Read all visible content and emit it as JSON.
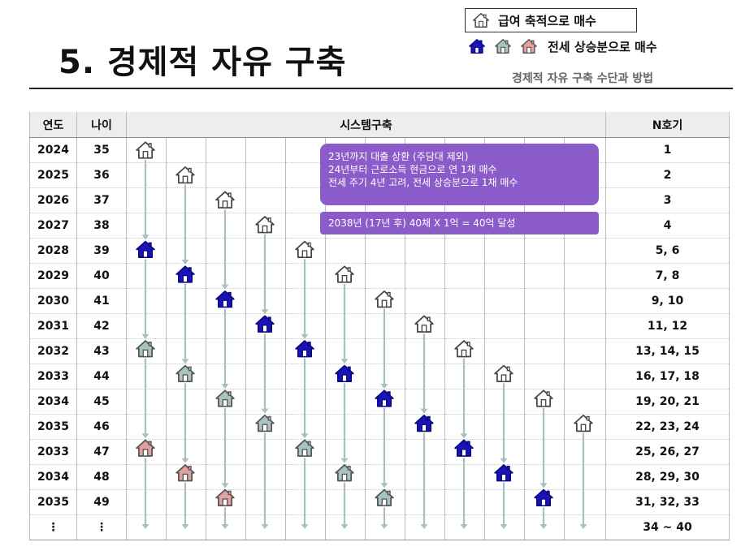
{
  "title": "5. 경제적 자유 구축",
  "subtitle": "경제적 자유 구축 수단과 방법",
  "legend": {
    "salary_label": "급여 축적으로 매수",
    "jeonse_label": "전세 상승분으로 매수"
  },
  "colors": {
    "salary": "#ffffff",
    "loan_paid": "#1a14b8",
    "jeonse_gray": "#a9c3c1",
    "jeonse_pink": "#e2a0a0",
    "arrow": "#a9c0bf",
    "note_bg": "#8b5cc9"
  },
  "table": {
    "headers": [
      "연도",
      "나이",
      "시스템구축",
      "N호기"
    ],
    "rows": [
      {
        "year": "2024",
        "age": "35",
        "n": "1"
      },
      {
        "year": "2025",
        "age": "36",
        "n": "2"
      },
      {
        "year": "2026",
        "age": "37",
        "n": "3"
      },
      {
        "year": "2027",
        "age": "38",
        "n": "4"
      },
      {
        "year": "2028",
        "age": "39",
        "n": "5, 6"
      },
      {
        "year": "2029",
        "age": "40",
        "n": "7, 8"
      },
      {
        "year": "2030",
        "age": "41",
        "n": "9, 10"
      },
      {
        "year": "2031",
        "age": "42",
        "n": "11, 12"
      },
      {
        "year": "2032",
        "age": "43",
        "n": "13, 14, 15"
      },
      {
        "year": "2033",
        "age": "44",
        "n": "16, 17, 18"
      },
      {
        "year": "2034",
        "age": "45",
        "n": "19, 20, 21"
      },
      {
        "year": "2035",
        "age": "46",
        "n": "22, 23, 24"
      },
      {
        "year": "2033",
        "age": "47",
        "n": "25, 26, 27"
      },
      {
        "year": "2034",
        "age": "48",
        "n": "28, 29, 30"
      },
      {
        "year": "2035",
        "age": "49",
        "n": "31, 32, 33"
      },
      {
        "year": "⋮",
        "age": "⋮",
        "n": "34 ~ 40"
      }
    ]
  },
  "notes": {
    "note1": [
      "23년까지 대출 상환 (주담대 제외)",
      "24년부터 근로소득 현금으로 연 1채 매수",
      "전세 주기 4년 고려, 전세 상승분으로 1채 매수"
    ],
    "note2": "2038년 (17년  후) 40채 X 1억 = 40억 달성"
  },
  "houses": [
    {
      "c": 0,
      "r": 0,
      "t": "salary"
    },
    {
      "c": 1,
      "r": 1,
      "t": "salary"
    },
    {
      "c": 2,
      "r": 2,
      "t": "salary"
    },
    {
      "c": 3,
      "r": 3,
      "t": "salary"
    },
    {
      "c": 0,
      "r": 4,
      "t": "loan_paid"
    },
    {
      "c": 4,
      "r": 4,
      "t": "salary"
    },
    {
      "c": 1,
      "r": 5,
      "t": "loan_paid"
    },
    {
      "c": 5,
      "r": 5,
      "t": "salary"
    },
    {
      "c": 2,
      "r": 6,
      "t": "loan_paid"
    },
    {
      "c": 6,
      "r": 6,
      "t": "salary"
    },
    {
      "c": 3,
      "r": 7,
      "t": "loan_paid"
    },
    {
      "c": 7,
      "r": 7,
      "t": "salary"
    },
    {
      "c": 0,
      "r": 8,
      "t": "jeonse_gray"
    },
    {
      "c": 4,
      "r": 8,
      "t": "loan_paid"
    },
    {
      "c": 8,
      "r": 8,
      "t": "salary"
    },
    {
      "c": 1,
      "r": 9,
      "t": "jeonse_gray"
    },
    {
      "c": 5,
      "r": 9,
      "t": "loan_paid"
    },
    {
      "c": 9,
      "r": 9,
      "t": "salary"
    },
    {
      "c": 2,
      "r": 10,
      "t": "jeonse_gray"
    },
    {
      "c": 6,
      "r": 10,
      "t": "loan_paid"
    },
    {
      "c": 10,
      "r": 10,
      "t": "salary"
    },
    {
      "c": 3,
      "r": 11,
      "t": "jeonse_gray"
    },
    {
      "c": 7,
      "r": 11,
      "t": "loan_paid"
    },
    {
      "c": 11,
      "r": 11,
      "t": "salary"
    },
    {
      "c": 0,
      "r": 12,
      "t": "jeonse_pink"
    },
    {
      "c": 4,
      "r": 12,
      "t": "jeonse_gray"
    },
    {
      "c": 8,
      "r": 12,
      "t": "loan_paid"
    },
    {
      "c": 1,
      "r": 13,
      "t": "jeonse_pink"
    },
    {
      "c": 5,
      "r": 13,
      "t": "jeonse_gray"
    },
    {
      "c": 9,
      "r": 13,
      "t": "loan_paid"
    },
    {
      "c": 2,
      "r": 14,
      "t": "jeonse_pink"
    },
    {
      "c": 6,
      "r": 14,
      "t": "jeonse_gray"
    },
    {
      "c": 10,
      "r": 14,
      "t": "loan_paid"
    }
  ]
}
